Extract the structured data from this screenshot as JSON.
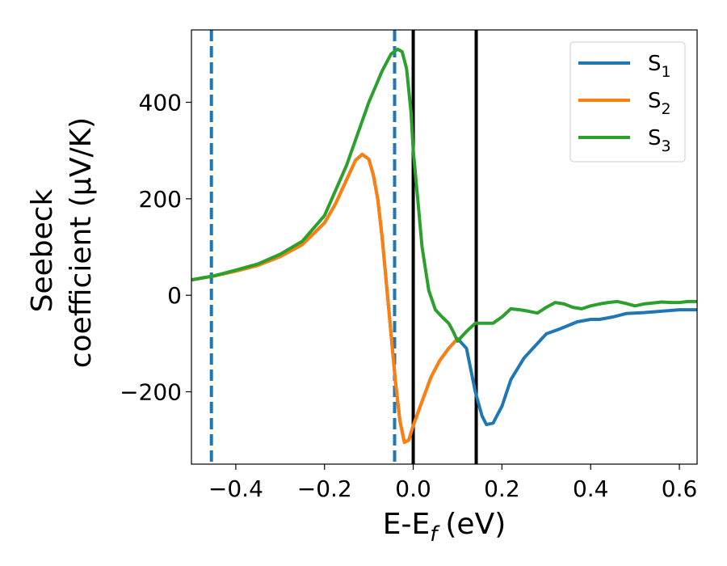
{
  "chart_data": {
    "type": "line",
    "xlabel": "E-E",
    "xlabel_sub": "f",
    "xlabel_unit": "(eV)",
    "ylabel_line1": "Seebeck",
    "ylabel_line2": "coefficient  (μV/K)",
    "xlim": [
      -0.5,
      0.64
    ],
    "ylim": [
      -350,
      550
    ],
    "xticks": [
      -0.4,
      -0.2,
      0.0,
      0.2,
      0.4,
      0.6
    ],
    "xtick_labels": [
      "−0.4",
      "−0.2",
      "0.0",
      "0.2",
      "0.4",
      "0.6"
    ],
    "yticks": [
      -200,
      0,
      200,
      400
    ],
    "ytick_labels": [
      "−200",
      "0",
      "200",
      "400"
    ],
    "grid": false,
    "legend_position": "top-right",
    "vlines": [
      {
        "x": -0.455,
        "style": "dashed",
        "color": "#1f77b4"
      },
      {
        "x": -0.042,
        "style": "dashed",
        "color": "#1f77b4"
      },
      {
        "x": 0.0,
        "style": "solid",
        "color": "#000000"
      },
      {
        "x": 0.142,
        "style": "solid",
        "color": "#000000"
      }
    ],
    "series": [
      {
        "name": "S",
        "sub": "1",
        "color": "#1f77b4",
        "x": [
          -0.5,
          -0.45,
          -0.4,
          -0.35,
          -0.3,
          -0.25,
          -0.2,
          -0.175,
          -0.15,
          -0.13,
          -0.115,
          -0.1,
          -0.09,
          -0.08,
          -0.07,
          -0.06,
          -0.05,
          -0.04,
          -0.03,
          -0.02,
          -0.01,
          0.0,
          0.02,
          0.04,
          0.06,
          0.08,
          0.1,
          0.12,
          0.14,
          0.155,
          0.165,
          0.18,
          0.2,
          0.22,
          0.25,
          0.3,
          0.33,
          0.37,
          0.4,
          0.42,
          0.45,
          0.48,
          0.52,
          0.56,
          0.6,
          0.64
        ],
        "y": [
          32,
          40,
          50,
          62,
          80,
          105,
          150,
          190,
          240,
          280,
          292,
          282,
          250,
          200,
          120,
          20,
          -80,
          -180,
          -260,
          -305,
          -300,
          -270,
          -220,
          -170,
          -135,
          -110,
          -90,
          -110,
          -200,
          -250,
          -268,
          -265,
          -230,
          -175,
          -130,
          -80,
          -70,
          -55,
          -50,
          -50,
          -45,
          -38,
          -36,
          -33,
          -30,
          -30
        ]
      },
      {
        "name": "S",
        "sub": "2",
        "color": "#ff7f0e",
        "x": [
          -0.5,
          -0.45,
          -0.4,
          -0.35,
          -0.3,
          -0.25,
          -0.2,
          -0.175,
          -0.15,
          -0.13,
          -0.115,
          -0.1,
          -0.09,
          -0.08,
          -0.07,
          -0.06,
          -0.05,
          -0.04,
          -0.03,
          -0.02,
          -0.01,
          0.0,
          0.02,
          0.04,
          0.06,
          0.08,
          0.1
        ],
        "y": [
          32,
          40,
          50,
          62,
          80,
          105,
          150,
          190,
          240,
          280,
          292,
          282,
          250,
          200,
          120,
          20,
          -80,
          -180,
          -260,
          -305,
          -300,
          -270,
          -220,
          -170,
          -135,
          -110,
          -90
        ]
      },
      {
        "name": "S",
        "sub": "3",
        "color": "#2ca02c",
        "x": [
          -0.5,
          -0.45,
          -0.4,
          -0.35,
          -0.3,
          -0.25,
          -0.2,
          -0.15,
          -0.1,
          -0.07,
          -0.05,
          -0.035,
          -0.025,
          -0.015,
          -0.005,
          0.0,
          0.01,
          0.02,
          0.035,
          0.05,
          0.065,
          0.08,
          0.09,
          0.1,
          0.12,
          0.14,
          0.16,
          0.18,
          0.2,
          0.22,
          0.24,
          0.26,
          0.28,
          0.3,
          0.32,
          0.34,
          0.36,
          0.38,
          0.4,
          0.42,
          0.44,
          0.46,
          0.48,
          0.5,
          0.52,
          0.54,
          0.56,
          0.58,
          0.6,
          0.62,
          0.64
        ],
        "y": [
          32,
          40,
          52,
          65,
          85,
          112,
          165,
          270,
          400,
          465,
          500,
          510,
          505,
          470,
          380,
          300,
          200,
          100,
          10,
          -30,
          -45,
          -58,
          -75,
          -95,
          -75,
          -58,
          -58,
          -58,
          -45,
          -28,
          -30,
          -33,
          -37,
          -25,
          -15,
          -18,
          -25,
          -28,
          -22,
          -18,
          -15,
          -13,
          -17,
          -22,
          -18,
          -16,
          -14,
          -15,
          -15,
          -13,
          -13
        ]
      }
    ]
  }
}
